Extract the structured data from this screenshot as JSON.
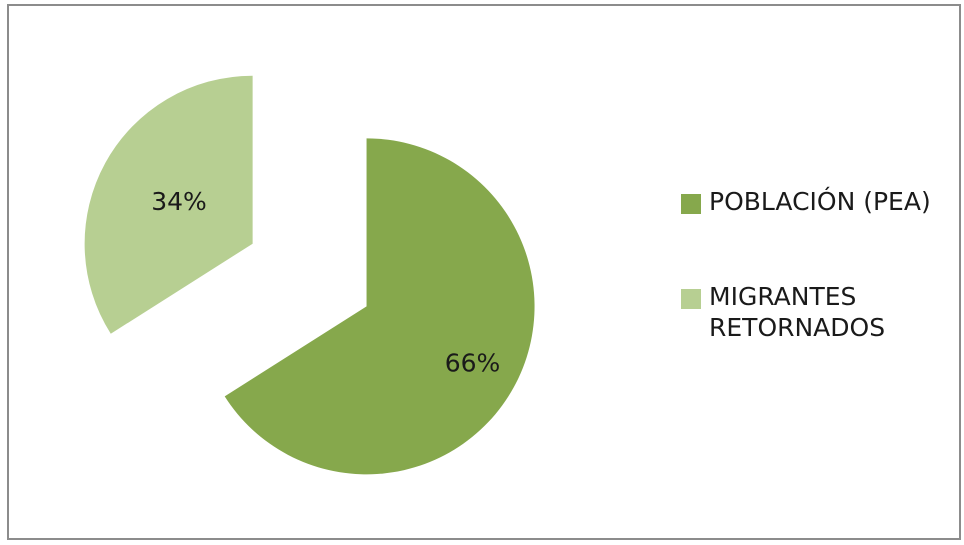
{
  "chart_data": {
    "type": "pie",
    "categories": [
      "POBLACIÓN (PEA)",
      "MIGRANTES\nRETORNADOS"
    ],
    "values": [
      66,
      34
    ],
    "value_labels": [
      "66%",
      "34%"
    ],
    "colors": [
      "#86a84c",
      "#b7cf92"
    ],
    "exploded": true,
    "legend": "right",
    "title": ""
  }
}
